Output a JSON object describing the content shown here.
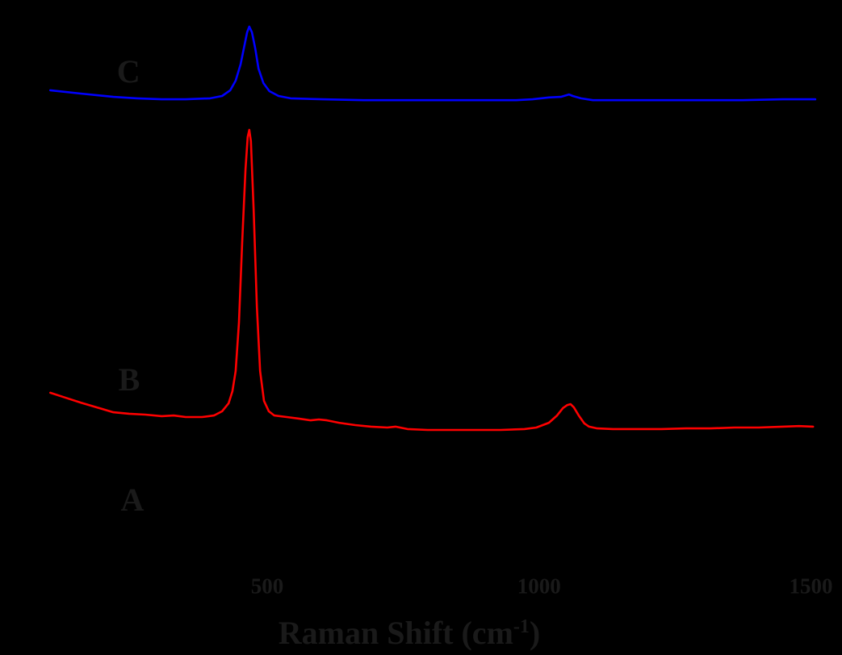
{
  "figure": {
    "colors": {
      "background": "#000000",
      "faint_text": "#1a1a1a",
      "series_b": "#ff0000",
      "series_c": "#0000ff"
    }
  },
  "x_axis": {
    "title": "Raman Shift (cm⁻¹)",
    "title_parts": {
      "pre": "Raman Shift (cm",
      "sup": "-1",
      "post": ")"
    },
    "tick_labels": [
      "500",
      "1000",
      "1500"
    ],
    "tick_values": [
      500,
      1000,
      1500
    ]
  },
  "chart_data": {
    "type": "line",
    "title": "",
    "xlabel": "Raman Shift (cm⁻¹)",
    "ylabel": "",
    "xlim": [
      95,
      1515
    ],
    "x_ticks": [
      500,
      1000,
      1500
    ],
    "grid": false,
    "legend_position": "none (inline curve labels A, B, C)",
    "intensity_units": "arbitrary units, normalized to curve B main peak = 1.0; curves are vertically offset (stacked spectra)",
    "series": [
      {
        "name": "A",
        "label": "A",
        "color": "#000000",
        "trace_visible": false,
        "label_at": [
          252,
          -0.234
        ],
        "peak_positions_cm": [],
        "points": []
      },
      {
        "name": "B",
        "label": "B",
        "color": "#ff0000",
        "trace_visible": true,
        "label_at": [
          246,
          0.167
        ],
        "peak_positions_cm": [
          467,
          1058
        ],
        "points": [
          [
            101,
            0.124
          ],
          [
            128,
            0.108
          ],
          [
            157,
            0.091
          ],
          [
            187,
            0.075
          ],
          [
            217,
            0.059
          ],
          [
            246,
            0.054
          ],
          [
            276,
            0.051
          ],
          [
            306,
            0.046
          ],
          [
            328,
            0.048
          ],
          [
            350,
            0.043
          ],
          [
            380,
            0.043
          ],
          [
            402,
            0.048
          ],
          [
            417,
            0.062
          ],
          [
            429,
            0.089
          ],
          [
            436,
            0.129
          ],
          [
            442,
            0.196
          ],
          [
            448,
            0.358
          ],
          [
            454,
            0.626
          ],
          [
            460,
            0.868
          ],
          [
            464,
            0.976
          ],
          [
            467,
            1.0
          ],
          [
            470,
            0.962
          ],
          [
            475,
            0.734
          ],
          [
            481,
            0.411
          ],
          [
            487,
            0.196
          ],
          [
            494,
            0.097
          ],
          [
            503,
            0.062
          ],
          [
            513,
            0.048
          ],
          [
            536,
            0.043
          ],
          [
            558,
            0.038
          ],
          [
            580,
            0.032
          ],
          [
            595,
            0.035
          ],
          [
            610,
            0.032
          ],
          [
            632,
            0.024
          ],
          [
            662,
            0.016
          ],
          [
            691,
            0.011
          ],
          [
            721,
            0.008
          ],
          [
            736,
            0.011
          ],
          [
            758,
            0.003
          ],
          [
            795,
            0.0
          ],
          [
            840,
            0.0
          ],
          [
            884,
            0.0
          ],
          [
            929,
            0.0
          ],
          [
            973,
            0.003
          ],
          [
            995,
            0.008
          ],
          [
            1018,
            0.024
          ],
          [
            1033,
            0.048
          ],
          [
            1044,
            0.073
          ],
          [
            1052,
            0.083
          ],
          [
            1058,
            0.086
          ],
          [
            1064,
            0.075
          ],
          [
            1073,
            0.048
          ],
          [
            1083,
            0.022
          ],
          [
            1092,
            0.011
          ],
          [
            1107,
            0.005
          ],
          [
            1136,
            0.003
          ],
          [
            1181,
            0.003
          ],
          [
            1225,
            0.003
          ],
          [
            1270,
            0.005
          ],
          [
            1315,
            0.005
          ],
          [
            1359,
            0.008
          ],
          [
            1404,
            0.008
          ],
          [
            1448,
            0.011
          ],
          [
            1478,
            0.013
          ],
          [
            1504,
            0.011
          ]
        ]
      },
      {
        "name": "C",
        "label": "C",
        "color": "#0000ff",
        "trace_visible": true,
        "label_at": [
          245,
          1.194
        ],
        "peak_positions_cm": [
          467,
          1055
        ],
        "points": [
          [
            101,
            1.132
          ],
          [
            157,
            1.121
          ],
          [
            217,
            1.11
          ],
          [
            261,
            1.105
          ],
          [
            306,
            1.102
          ],
          [
            350,
            1.102
          ],
          [
            395,
            1.105
          ],
          [
            417,
            1.113
          ],
          [
            432,
            1.132
          ],
          [
            442,
            1.164
          ],
          [
            451,
            1.218
          ],
          [
            457,
            1.271
          ],
          [
            463,
            1.325
          ],
          [
            467,
            1.344
          ],
          [
            472,
            1.325
          ],
          [
            478,
            1.271
          ],
          [
            484,
            1.204
          ],
          [
            493,
            1.156
          ],
          [
            504,
            1.129
          ],
          [
            521,
            1.113
          ],
          [
            543,
            1.105
          ],
          [
            602,
            1.102
          ],
          [
            677,
            1.099
          ],
          [
            751,
            1.099
          ],
          [
            825,
            1.099
          ],
          [
            899,
            1.099
          ],
          [
            958,
            1.099
          ],
          [
            988,
            1.102
          ],
          [
            1018,
            1.108
          ],
          [
            1040,
            1.11
          ],
          [
            1055,
            1.118
          ],
          [
            1062,
            1.113
          ],
          [
            1077,
            1.105
          ],
          [
            1099,
            1.099
          ],
          [
            1166,
            1.099
          ],
          [
            1270,
            1.099
          ],
          [
            1374,
            1.099
          ],
          [
            1448,
            1.102
          ],
          [
            1508,
            1.102
          ]
        ]
      }
    ]
  }
}
